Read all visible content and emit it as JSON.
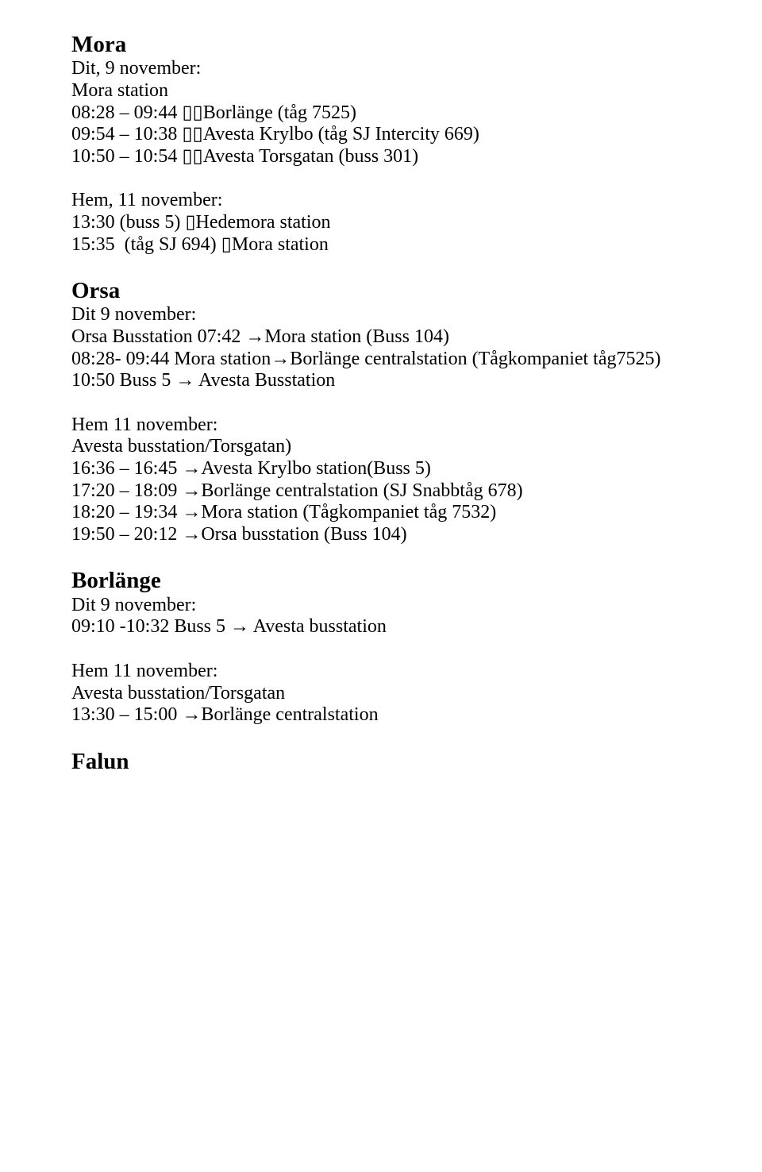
{
  "font": {
    "family": "Times New Roman",
    "body_size_pt": 18,
    "heading_size_pt": 22,
    "heading_weight": "bold",
    "color": "#000000",
    "background": "#ffffff"
  },
  "sections": {
    "mora": {
      "heading": "Mora",
      "dit_label": "Dit, 9 november:",
      "dit_lines": [
        "Mora station",
        "08:28 – 09:44 ▯▯Borlänge (tåg 7525)",
        "09:54 – 10:38 ▯▯Avesta Krylbo (tåg SJ Intercity 669)",
        "10:50 – 10:54 ▯▯Avesta Torsgatan (buss 301)"
      ],
      "hem_label": "Hem, 11 november:",
      "hem_lines": [
        "13:30 (buss 5) ▯Hedemora station",
        "15:35  (tåg SJ 694) ▯Mora station"
      ]
    },
    "orsa": {
      "heading": "Orsa",
      "dit_label": "Dit 9 november:",
      "dit_lines": [
        "Orsa Busstation 07:42 →Mora station (Buss 104)",
        "08:28- 09:44 Mora station→Borlänge centralstation (Tågkompaniet tåg7525)",
        "10:50 Buss 5 → Avesta Busstation"
      ],
      "hem_label": "Hem 11 november:",
      "hem_lines": [
        "Avesta busstation/Torsgatan)",
        "16:36 – 16:45 →Avesta Krylbo station(Buss 5)",
        "17:20 – 18:09 →Borlänge centralstation (SJ Snabbtåg 678)",
        "18:20 – 19:34 →Mora station (Tågkompaniet tåg 7532)",
        "19:50 – 20:12 →Orsa busstation (Buss 104)"
      ]
    },
    "borlange": {
      "heading": "Borlänge",
      "dit_label": "Dit 9 november:",
      "dit_lines": [
        "09:10 -10:32 Buss 5 → Avesta busstation"
      ],
      "hem_label": "Hem 11 november:",
      "hem_lines": [
        "Avesta busstation/Torsgatan",
        "13:30 – 15:00 →Borlänge centralstation"
      ]
    },
    "falun": {
      "heading": "Falun"
    }
  }
}
